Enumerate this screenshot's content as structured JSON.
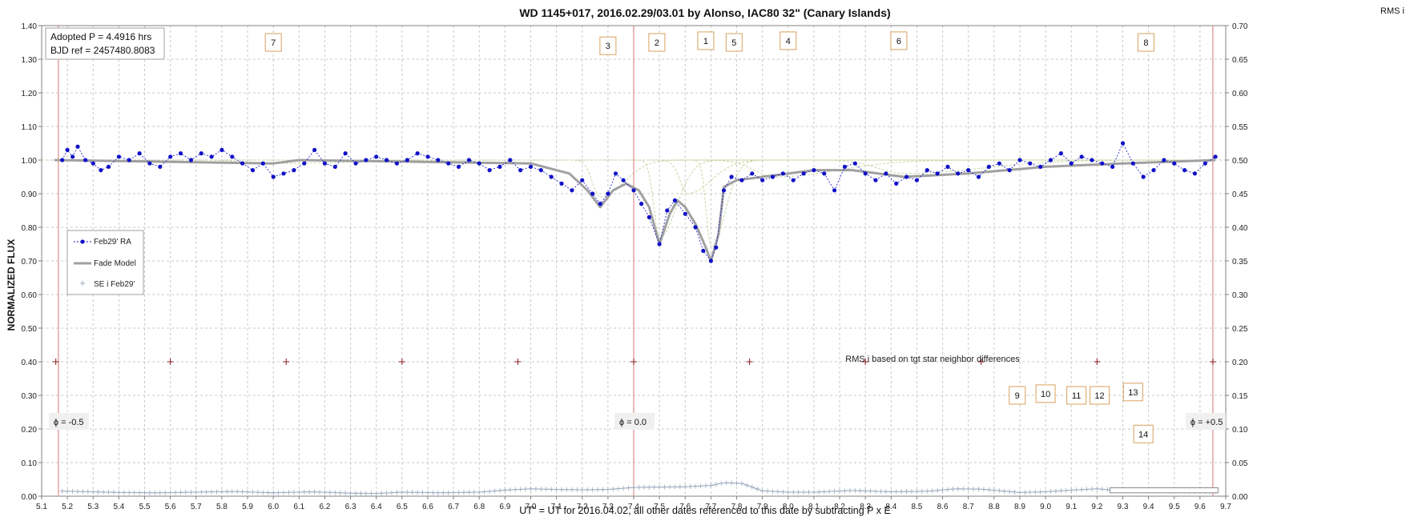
{
  "chart_data": {
    "type": "scatter",
    "title": "WD 1145+017, 2016.02.29/03.01  by Alonso, IAC80 32\" (Canary Islands)",
    "xlabel": "UT\"  = UT for 2016.04.02, all other dates referenced to this date by subtracting P x E",
    "ylabel": "NORMALIZED FLUX",
    "y2label": "RMS i",
    "xlim": [
      5.1,
      9.7
    ],
    "ylim": [
      0.0,
      1.4
    ],
    "y2lim": [
      0.0,
      0.7
    ],
    "grid": true,
    "legend_position": "middle-left",
    "x_ticks": [
      "5.1",
      "5.2",
      "5.3",
      "5.4",
      "5.5",
      "5.6",
      "5.7",
      "5.8",
      "5.9",
      "6.0",
      "6.1",
      "6.2",
      "6.3",
      "6.4",
      "6.5",
      "6.6",
      "6.7",
      "6.8",
      "6.9",
      "7.0",
      "7.1",
      "7.2",
      "7.3",
      "7.4",
      "7.5",
      "7.6",
      "7.7",
      "7.8",
      "7.9",
      "8.0",
      "8.1",
      "8.2",
      "8.3",
      "8.4",
      "8.5",
      "8.6",
      "8.7",
      "8.8",
      "8.9",
      "9.0",
      "9.1",
      "9.2",
      "9.3",
      "9.4",
      "9.5",
      "9.6",
      "9.7"
    ],
    "y_ticks": [
      "0.00",
      "0.10",
      "0.20",
      "0.30",
      "0.40",
      "0.50",
      "0.60",
      "0.70",
      "0.80",
      "0.90",
      "1.00",
      "1.10",
      "1.20",
      "1.30",
      "1.40"
    ],
    "y2_ticks": [
      "0.00",
      "0.05",
      "0.10",
      "0.15",
      "0.20",
      "0.25",
      "0.30",
      "0.35",
      "0.40",
      "0.45",
      "0.50",
      "0.55",
      "0.60",
      "0.65",
      "0.70"
    ],
    "info_box": [
      "Adopted P = 4.4916 hrs",
      "BJD ref = 2457480.8083"
    ],
    "legend": [
      {
        "label": "Feb29' RA",
        "color": "#1010c8"
      },
      {
        "label": "Fade Model",
        "color": "#a0a0a0"
      },
      {
        "label": "SE i Feb29'",
        "color": "#9aa8bc"
      }
    ],
    "series": [
      {
        "name": "Feb29' RA",
        "color": "#1010c8",
        "points": [
          [
            5.18,
            1.0
          ],
          [
            5.2,
            1.03
          ],
          [
            5.22,
            1.01
          ],
          [
            5.24,
            1.04
          ],
          [
            5.27,
            1.0
          ],
          [
            5.3,
            0.99
          ],
          [
            5.33,
            0.97
          ],
          [
            5.36,
            0.98
          ],
          [
            5.4,
            1.01
          ],
          [
            5.44,
            1.0
          ],
          [
            5.48,
            1.02
          ],
          [
            5.52,
            0.99
          ],
          [
            5.56,
            0.98
          ],
          [
            5.6,
            1.01
          ],
          [
            5.64,
            1.02
          ],
          [
            5.68,
            1.0
          ],
          [
            5.72,
            1.02
          ],
          [
            5.76,
            1.01
          ],
          [
            5.8,
            1.03
          ],
          [
            5.84,
            1.01
          ],
          [
            5.88,
            0.99
          ],
          [
            5.92,
            0.97
          ],
          [
            5.96,
            0.99
          ],
          [
            6.0,
            0.95
          ],
          [
            6.04,
            0.96
          ],
          [
            6.08,
            0.97
          ],
          [
            6.12,
            0.99
          ],
          [
            6.16,
            1.03
          ],
          [
            6.2,
            0.99
          ],
          [
            6.24,
            0.98
          ],
          [
            6.28,
            1.02
          ],
          [
            6.32,
            0.99
          ],
          [
            6.36,
            1.0
          ],
          [
            6.4,
            1.01
          ],
          [
            6.44,
            1.0
          ],
          [
            6.48,
            0.99
          ],
          [
            6.52,
            1.0
          ],
          [
            6.56,
            1.02
          ],
          [
            6.6,
            1.01
          ],
          [
            6.64,
            1.0
          ],
          [
            6.68,
            0.99
          ],
          [
            6.72,
            0.98
          ],
          [
            6.76,
            1.0
          ],
          [
            6.8,
            0.99
          ],
          [
            6.84,
            0.97
          ],
          [
            6.88,
            0.98
          ],
          [
            6.92,
            1.0
          ],
          [
            6.96,
            0.97
          ],
          [
            7.0,
            0.98
          ],
          [
            7.04,
            0.97
          ],
          [
            7.08,
            0.95
          ],
          [
            7.12,
            0.93
          ],
          [
            7.16,
            0.91
          ],
          [
            7.2,
            0.94
          ],
          [
            7.24,
            0.9
          ],
          [
            7.27,
            0.87
          ],
          [
            7.3,
            0.9
          ],
          [
            7.33,
            0.96
          ],
          [
            7.36,
            0.94
          ],
          [
            7.4,
            0.91
          ],
          [
            7.43,
            0.87
          ],
          [
            7.46,
            0.83
          ],
          [
            7.5,
            0.75
          ],
          [
            7.53,
            0.85
          ],
          [
            7.56,
            0.88
          ],
          [
            7.6,
            0.84
          ],
          [
            7.64,
            0.8
          ],
          [
            7.67,
            0.73
          ],
          [
            7.7,
            0.7
          ],
          [
            7.72,
            0.74
          ],
          [
            7.75,
            0.91
          ],
          [
            7.78,
            0.95
          ],
          [
            7.82,
            0.94
          ],
          [
            7.86,
            0.96
          ],
          [
            7.9,
            0.94
          ],
          [
            7.94,
            0.95
          ],
          [
            7.98,
            0.96
          ],
          [
            8.02,
            0.94
          ],
          [
            8.06,
            0.96
          ],
          [
            8.1,
            0.97
          ],
          [
            8.14,
            0.96
          ],
          [
            8.18,
            0.91
          ],
          [
            8.22,
            0.98
          ],
          [
            8.26,
            0.99
          ],
          [
            8.3,
            0.96
          ],
          [
            8.34,
            0.94
          ],
          [
            8.38,
            0.96
          ],
          [
            8.42,
            0.93
          ],
          [
            8.46,
            0.95
          ],
          [
            8.5,
            0.94
          ],
          [
            8.54,
            0.97
          ],
          [
            8.58,
            0.96
          ],
          [
            8.62,
            0.98
          ],
          [
            8.66,
            0.96
          ],
          [
            8.7,
            0.97
          ],
          [
            8.74,
            0.95
          ],
          [
            8.78,
            0.98
          ],
          [
            8.82,
            0.99
          ],
          [
            8.86,
            0.97
          ],
          [
            8.9,
            1.0
          ],
          [
            8.94,
            0.99
          ],
          [
            8.98,
            0.98
          ],
          [
            9.02,
            1.0
          ],
          [
            9.06,
            1.02
          ],
          [
            9.1,
            0.99
          ],
          [
            9.14,
            1.01
          ],
          [
            9.18,
            1.0
          ],
          [
            9.22,
            0.99
          ],
          [
            9.26,
            0.98
          ],
          [
            9.3,
            1.05
          ],
          [
            9.34,
            0.99
          ],
          [
            9.38,
            0.95
          ],
          [
            9.42,
            0.97
          ],
          [
            9.46,
            1.0
          ],
          [
            9.5,
            0.99
          ],
          [
            9.54,
            0.97
          ],
          [
            9.58,
            0.96
          ],
          [
            9.62,
            0.99
          ],
          [
            9.66,
            1.01
          ]
        ]
      },
      {
        "name": "Fade Model",
        "color": "#a0a0a0",
        "points": [
          [
            5.15,
            1.0
          ],
          [
            6.0,
            0.99
          ],
          [
            6.1,
            1.0
          ],
          [
            7.0,
            0.99
          ],
          [
            7.15,
            0.96
          ],
          [
            7.22,
            0.91
          ],
          [
            7.27,
            0.86
          ],
          [
            7.32,
            0.91
          ],
          [
            7.37,
            0.93
          ],
          [
            7.42,
            0.91
          ],
          [
            7.46,
            0.86
          ],
          [
            7.5,
            0.75
          ],
          [
            7.54,
            0.84
          ],
          [
            7.57,
            0.88
          ],
          [
            7.6,
            0.86
          ],
          [
            7.64,
            0.81
          ],
          [
            7.68,
            0.74
          ],
          [
            7.7,
            0.7
          ],
          [
            7.73,
            0.78
          ],
          [
            7.75,
            0.92
          ],
          [
            7.8,
            0.94
          ],
          [
            7.9,
            0.95
          ],
          [
            8.1,
            0.97
          ],
          [
            8.25,
            0.97
          ],
          [
            8.45,
            0.95
          ],
          [
            8.7,
            0.96
          ],
          [
            9.0,
            0.98
          ],
          [
            9.3,
            0.99
          ],
          [
            9.66,
            1.0
          ]
        ]
      },
      {
        "name": "SE i Feb29'",
        "color": "#9aa8bc",
        "points": [
          [
            5.18,
            0.015
          ],
          [
            5.3,
            0.013
          ],
          [
            5.4,
            0.011
          ],
          [
            5.55,
            0.01
          ],
          [
            5.7,
            0.012
          ],
          [
            5.85,
            0.014
          ],
          [
            6.0,
            0.01
          ],
          [
            6.15,
            0.013
          ],
          [
            6.3,
            0.009
          ],
          [
            6.4,
            0.008
          ],
          [
            6.5,
            0.012
          ],
          [
            6.65,
            0.01
          ],
          [
            6.8,
            0.012
          ],
          [
            6.9,
            0.018
          ],
          [
            7.0,
            0.022
          ],
          [
            7.1,
            0.02
          ],
          [
            7.2,
            0.019
          ],
          [
            7.3,
            0.02
          ],
          [
            7.4,
            0.026
          ],
          [
            7.5,
            0.027
          ],
          [
            7.6,
            0.028
          ],
          [
            7.7,
            0.032
          ],
          [
            7.75,
            0.04
          ],
          [
            7.82,
            0.038
          ],
          [
            7.9,
            0.016
          ],
          [
            8.0,
            0.012
          ],
          [
            8.1,
            0.012
          ],
          [
            8.25,
            0.017
          ],
          [
            8.4,
            0.013
          ],
          [
            8.55,
            0.015
          ],
          [
            8.65,
            0.022
          ],
          [
            8.75,
            0.021
          ],
          [
            8.9,
            0.011
          ],
          [
            9.0,
            0.013
          ],
          [
            9.1,
            0.018
          ],
          [
            9.2,
            0.022
          ],
          [
            9.3,
            0.016
          ],
          [
            9.4,
            0.016
          ],
          [
            9.5,
            0.015
          ],
          [
            9.66,
            0.014
          ]
        ]
      }
    ],
    "component_dips": [
      {
        "label": "1",
        "x": 7.7,
        "depth": 0.26,
        "width": 0.018
      },
      {
        "label": "2",
        "x": 7.5,
        "depth": 0.23,
        "width": 0.022
      },
      {
        "label": "3",
        "x": 7.27,
        "depth": 0.11,
        "width": 0.03
      },
      {
        "label": "5",
        "x": 7.61,
        "depth": 0.1,
        "width": 0.03
      },
      {
        "label": "4",
        "x": 7.95,
        "depth": 0.05,
        "width": 0.08
      },
      {
        "label": "6",
        "x": 8.45,
        "depth": 0.04,
        "width": 0.1
      },
      {
        "label": "7",
        "x": 6.0,
        "depth": 0.01,
        "width": 0.1
      }
    ],
    "phase_markers": [
      {
        "x": 5.165,
        "label": "ϕ = -0.5"
      },
      {
        "x": 7.4,
        "label": "ϕ = 0.0"
      },
      {
        "x": 9.65,
        "label": "ϕ = +0.5"
      }
    ],
    "cross_markers_x": [
      5.155,
      5.6,
      6.05,
      6.5,
      6.95,
      7.4,
      7.85,
      8.3,
      8.75,
      9.2,
      9.65
    ],
    "cross_markers_y": 0.4,
    "numbered_labels": [
      {
        "text": "7",
        "x": 6.0,
        "y": 1.35
      },
      {
        "text": "3",
        "x": 7.3,
        "y": 1.34
      },
      {
        "text": "2",
        "x": 7.49,
        "y": 1.35
      },
      {
        "text": "1",
        "x": 7.68,
        "y": 1.355
      },
      {
        "text": "5",
        "x": 7.79,
        "y": 1.35
      },
      {
        "text": "4",
        "x": 8.0,
        "y": 1.355
      },
      {
        "text": "6",
        "x": 8.43,
        "y": 1.355
      },
      {
        "text": "8",
        "x": 9.39,
        "y": 1.35
      },
      {
        "text": "9",
        "x": 8.89,
        "y": 0.3
      },
      {
        "text": "10",
        "x": 9.0,
        "y": 0.305
      },
      {
        "text": "11",
        "x": 9.12,
        "y": 0.3
      },
      {
        "text": "12",
        "x": 9.21,
        "y": 0.3
      },
      {
        "text": "13",
        "x": 9.34,
        "y": 0.31
      },
      {
        "text": "14",
        "x": 9.38,
        "y": 0.185
      }
    ],
    "note": "RMS i based on tgt star neighbor differences"
  }
}
